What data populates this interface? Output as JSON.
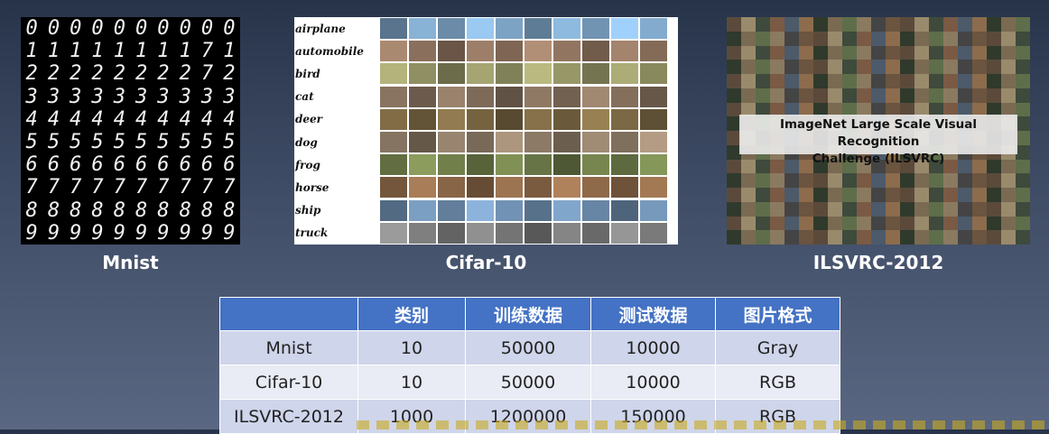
{
  "panels": {
    "mnist": {
      "caption": "Mnist",
      "digits": [
        [
          "0",
          "0",
          "0",
          "0",
          "0",
          "0",
          "0",
          "0",
          "0",
          "0"
        ],
        [
          "1",
          "1",
          "1",
          "1",
          "1",
          "1",
          "1",
          "1",
          "7",
          "1"
        ],
        [
          "2",
          "2",
          "2",
          "2",
          "2",
          "2",
          "2",
          "2",
          "7",
          "2"
        ],
        [
          "3",
          "3",
          "3",
          "3",
          "3",
          "3",
          "3",
          "3",
          "3",
          "3"
        ],
        [
          "4",
          "4",
          "4",
          "4",
          "4",
          "4",
          "4",
          "4",
          "4",
          "4"
        ],
        [
          "5",
          "5",
          "5",
          "5",
          "5",
          "5",
          "5",
          "5",
          "5",
          "5"
        ],
        [
          "6",
          "6",
          "6",
          "6",
          "6",
          "6",
          "6",
          "6",
          "6",
          "6"
        ],
        [
          "7",
          "7",
          "7",
          "7",
          "7",
          "7",
          "7",
          "7",
          "7",
          "7"
        ],
        [
          "8",
          "8",
          "8",
          "8",
          "8",
          "8",
          "8",
          "8",
          "8",
          "8"
        ],
        [
          "9",
          "9",
          "9",
          "9",
          "9",
          "9",
          "9",
          "9",
          "9",
          "9"
        ]
      ]
    },
    "cifar": {
      "caption": "Cifar-10",
      "classes": [
        "airplane",
        "automobile",
        "bird",
        "cat",
        "deer",
        "dog",
        "frog",
        "horse",
        "ship",
        "truck"
      ],
      "class_colors": [
        "#7fa6c8",
        "#8a6f5c",
        "#9a9a6a",
        "#7d6a58",
        "#7e6a45",
        "#8c7a66",
        "#6f7d4a",
        "#8f6a4a",
        "#6f8fb0",
        "#7a7a7a"
      ]
    },
    "ilsvrc": {
      "caption": "ILSVRC-2012",
      "banner_line1": "ImageNet Large Scale Visual Recognition",
      "banner_line2": "Challenge (ILSVRC)"
    }
  },
  "table": {
    "headers": [
      "",
      "类别",
      "训练数据",
      "测试数据",
      "图片格式"
    ],
    "rows": [
      [
        "Mnist",
        "10",
        "50000",
        "10000",
        "Gray"
      ],
      [
        "Cifar-10",
        "10",
        "50000",
        "10000",
        "RGB"
      ],
      [
        "ILSVRC-2012",
        "1000",
        "1200000",
        "150000",
        "RGB"
      ]
    ]
  },
  "colors": {
    "header": "#4472c4",
    "row_odd": "#cfd5ea",
    "row_even": "#e9ebf5",
    "background": "#3d4a63"
  }
}
